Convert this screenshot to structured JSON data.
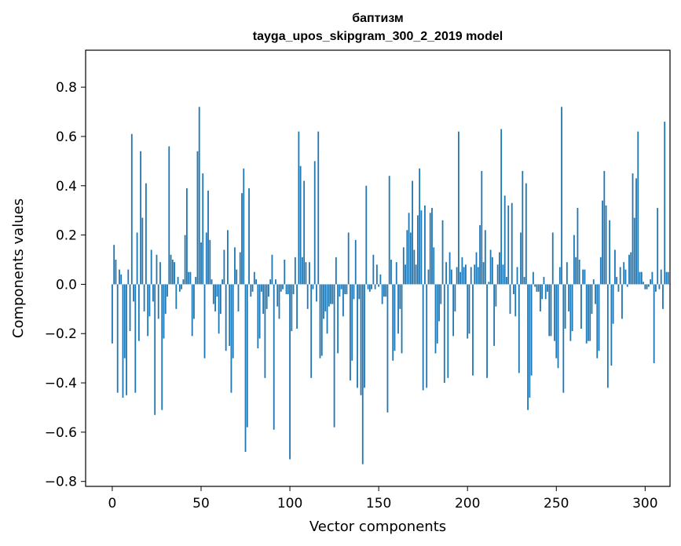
{
  "chart_data": {
    "type": "bar",
    "title": [
      "баптизм",
      "tayga_upos_skipgram_300_2_2019 model"
    ],
    "xlabel": "Vector components",
    "ylabel": "Components values",
    "xlim": [
      -15,
      314
    ],
    "ylim": [
      -0.82,
      0.95
    ],
    "xticks": [
      0,
      50,
      100,
      150,
      200,
      250,
      300
    ],
    "xtick_labels": [
      "0",
      "50",
      "100",
      "150",
      "200",
      "250",
      "300"
    ],
    "yticks": [
      -0.8,
      -0.6,
      -0.4,
      -0.2,
      0.0,
      0.2,
      0.4,
      0.6,
      0.8
    ],
    "ytick_labels": [
      "−0.8",
      "−0.6",
      "−0.4",
      "−0.2",
      "0.0",
      "0.2",
      "0.4",
      "0.6",
      "0.8"
    ],
    "bar_color": "#1f77b4",
    "values": [
      -0.24,
      0.16,
      0.1,
      -0.44,
      0.06,
      0.04,
      -0.46,
      -0.3,
      -0.45,
      0.06,
      -0.19,
      0.61,
      -0.07,
      -0.44,
      0.21,
      -0.23,
      0.54,
      0.27,
      -0.11,
      0.41,
      -0.21,
      -0.13,
      0.14,
      -0.07,
      -0.53,
      0.12,
      -0.14,
      0.09,
      -0.51,
      -0.22,
      -0.12,
      -0.05,
      0.56,
      0.12,
      0.1,
      0.09,
      -0.1,
      0.03,
      -0.03,
      -0.02,
      0.02,
      0.2,
      0.39,
      0.05,
      0.05,
      -0.21,
      -0.14,
      0.03,
      0.54,
      0.72,
      0.17,
      0.45,
      -0.3,
      0.21,
      0.38,
      0.18,
      0.02,
      -0.08,
      -0.11,
      -0.05,
      -0.2,
      -0.12,
      0.02,
      0.14,
      -0.27,
      0.22,
      -0.25,
      -0.44,
      -0.3,
      0.15,
      0.06,
      -0.11,
      0.13,
      0.37,
      0.47,
      -0.68,
      -0.58,
      0.39,
      -0.05,
      -0.03,
      0.05,
      0.02,
      -0.26,
      -0.22,
      -0.03,
      -0.12,
      -0.38,
      -0.1,
      -0.05,
      0.02,
      0.12,
      -0.59,
      0.02,
      -0.09,
      -0.14,
      -0.03,
      -0.02,
      0.1,
      -0.04,
      -0.04,
      -0.71,
      -0.19,
      -0.04,
      0.11,
      -0.18,
      0.62,
      0.48,
      0.11,
      0.42,
      0.09,
      -0.1,
      0.09,
      -0.38,
      -0.02,
      0.5,
      -0.07,
      0.62,
      -0.3,
      -0.29,
      -0.14,
      -0.11,
      -0.2,
      -0.09,
      -0.08,
      -0.08,
      -0.58,
      0.11,
      -0.28,
      -0.05,
      -0.02,
      -0.13,
      -0.04,
      -0.04,
      0.21,
      -0.39,
      -0.31,
      -0.06,
      0.18,
      -0.42,
      -0.06,
      -0.45,
      -0.73,
      -0.42,
      0.4,
      -0.02,
      -0.03,
      -0.02,
      0.12,
      -0.02,
      0.08,
      -0.01,
      0.04,
      -0.08,
      -0.05,
      -0.05,
      -0.52,
      0.44,
      0.1,
      -0.31,
      -0.27,
      0.09,
      -0.2,
      -0.1,
      -0.28,
      0.15,
      0.08,
      0.22,
      0.29,
      0.21,
      0.42,
      0.14,
      0.08,
      0.28,
      0.47,
      0.3,
      -0.43,
      0.32,
      -0.42,
      0.06,
      0.29,
      0.31,
      0.15,
      -0.28,
      -0.24,
      -0.15,
      -0.08,
      0.26,
      -0.4,
      0.09,
      -0.38,
      0.13,
      0.06,
      -0.21,
      -0.11,
      0.07,
      0.62,
      0.05,
      0.11,
      0.07,
      0.08,
      -0.22,
      -0.2,
      0.07,
      -0.37,
      0.08,
      0.13,
      0.07,
      0.24,
      0.46,
      0.09,
      0.22,
      -0.38,
      0.01,
      0.14,
      0.11,
      -0.25,
      -0.09,
      0.08,
      0.13,
      0.63,
      0.08,
      0.36,
      0.03,
      0.32,
      -0.12,
      0.33,
      -0.04,
      -0.13,
      0.07,
      -0.36,
      0.21,
      0.46,
      0.03,
      0.41,
      -0.51,
      -0.46,
      -0.37,
      0.05,
      -0.01,
      -0.03,
      -0.03,
      -0.11,
      -0.06,
      0.03,
      -0.06,
      -0.03,
      -0.21,
      -0.21,
      0.21,
      -0.23,
      -0.3,
      -0.34,
      0.07,
      0.72,
      -0.44,
      -0.18,
      0.09,
      -0.11,
      -0.23,
      -0.19,
      0.2,
      0.11,
      0.31,
      0.1,
      -0.18,
      0.06,
      0.06,
      -0.24,
      -0.23,
      -0.23,
      -0.12,
      0.02,
      -0.08,
      -0.3,
      -0.27,
      0.11,
      0.34,
      0.46,
      0.32,
      -0.42,
      0.26,
      -0.33,
      -0.16,
      0.14,
      0.03,
      -0.03,
      0.07,
      -0.14,
      0.09,
      0.06,
      -0.01,
      0.12,
      0.13,
      0.45,
      0.27,
      0.43,
      0.62,
      0.05,
      0.05,
      0.01,
      -0.02,
      -0.02,
      -0.01,
      0.02,
      0.05,
      -0.32,
      -0.03,
      0.31,
      -0.02,
      0.06,
      -0.1,
      0.66,
      0.05,
      0.05,
      0.0
    ]
  }
}
